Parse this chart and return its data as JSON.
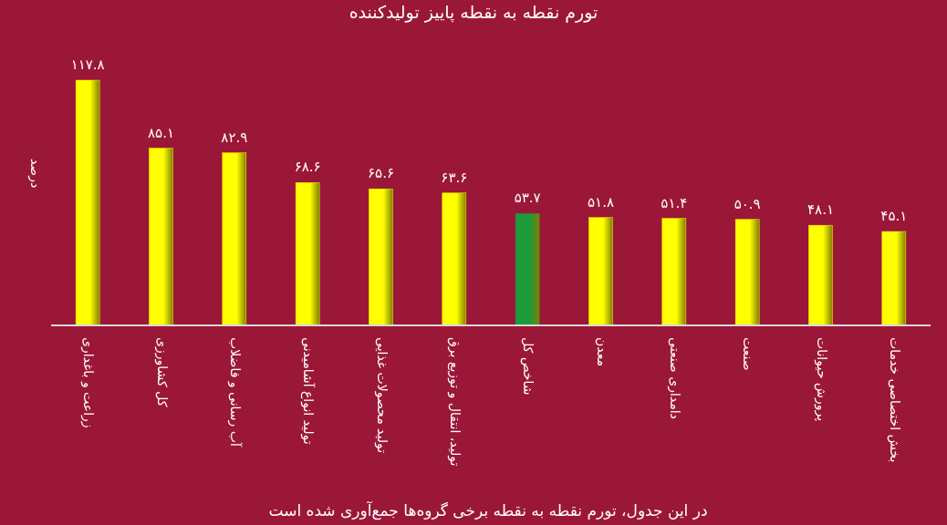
{
  "chart_data": {
    "type": "bar",
    "title": "تورم نقطه به نقطه پاییز تولیدکننده",
    "ylabel": "درصد",
    "annotations": [
      "در این جدول، تورم نقطه به نقطه برخی گروه‌ها جمع‌آوری شده است"
    ],
    "categories": [
      "زراعت و باغداری",
      "کل کشاورزی",
      "آب رسانی و فاضلاب",
      "تولید انواع آشامیدنی",
      "تولید محصولات غذایی",
      "تولید، انتقال و توزیع برق",
      "شاخص کل",
      "معدن",
      "دامداری صنعتی",
      "صنعت",
      "پرورش حیوانات",
      "بخش اختصاصی خدمات"
    ],
    "values": [
      117.8,
      85.1,
      82.9,
      68.6,
      65.6,
      63.6,
      53.7,
      51.8,
      51.4,
      50.9,
      48.1,
      45.1
    ],
    "value_labels": [
      "۱۱۷.۸",
      "۸۵.۱",
      "۸۲.۹",
      "۶۸.۶",
      "۶۵.۶",
      "۶۳.۶",
      "۵۳.۷",
      "۵۱.۸",
      "۵۱.۴",
      "۵۰.۹",
      "۴۸.۱",
      "۴۵.۱"
    ],
    "colors": [
      "#ffff00",
      "#ffff00",
      "#ffff00",
      "#ffff00",
      "#ffff00",
      "#ffff00",
      "#1a9a3a",
      "#ffff00",
      "#ffff00",
      "#ffff00",
      "#ffff00",
      "#ffff00"
    ]
  }
}
